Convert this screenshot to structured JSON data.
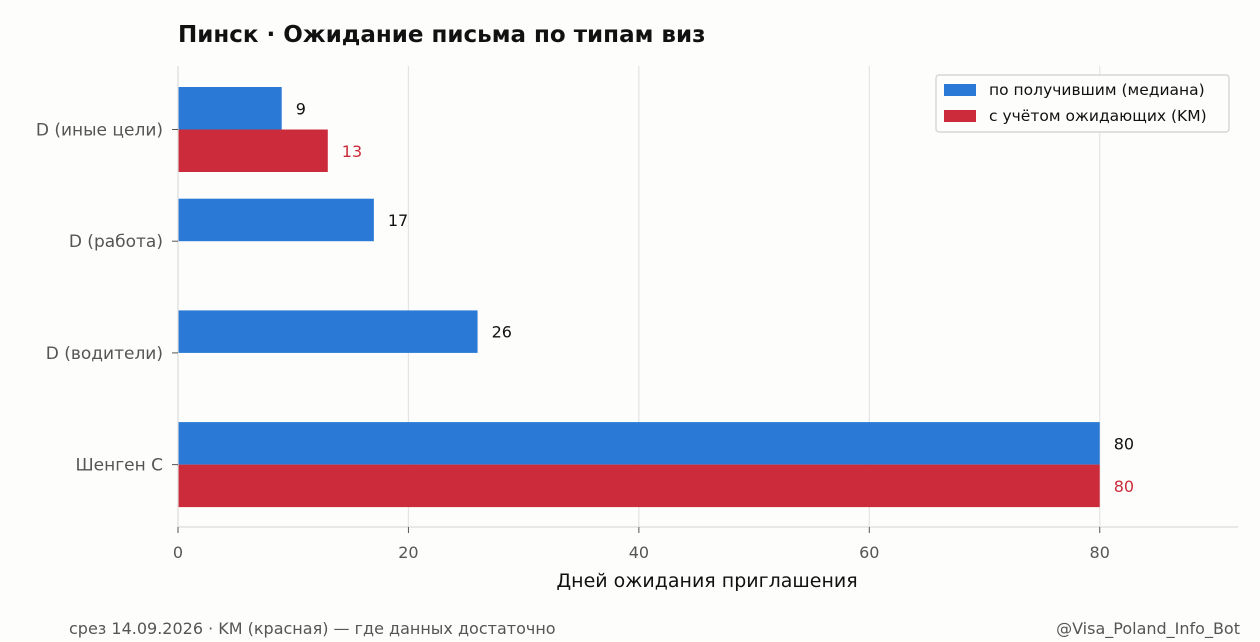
{
  "chart_data": {
    "type": "bar",
    "orientation": "horizontal",
    "title": "Пинск · Ожидание письма по типам виз",
    "xlabel": "Дней ожидания приглашения",
    "ylabel": "",
    "xlim": [
      0,
      92
    ],
    "xticks": [
      0,
      20,
      40,
      60,
      80
    ],
    "xtick_labels": [
      "0",
      "20",
      "40",
      "60",
      "80"
    ],
    "grid": "vertical",
    "legend_position": "top-right",
    "categories": [
      "D (иные цели)",
      "D (работа)",
      "D (водители)",
      "Шенген C"
    ],
    "series": [
      {
        "name": "по получившим (медиана)",
        "color": "#2a79d6",
        "label_color": "#111111",
        "values": [
          9,
          17,
          26,
          80
        ],
        "labels": [
          "9",
          "17",
          "26",
          "80"
        ]
      },
      {
        "name": "с учётом ожидающих (KM)",
        "color": "#cb2b3a",
        "label_color": "#cb2b3a",
        "values": [
          13,
          null,
          null,
          80
        ],
        "labels": [
          "13",
          "",
          "",
          "80"
        ]
      }
    ]
  },
  "footer": {
    "note": "срез 14.09.2026 · KM (красная) — где данных достаточно",
    "credit": "@Visa_Poland_Info_Bot"
  }
}
